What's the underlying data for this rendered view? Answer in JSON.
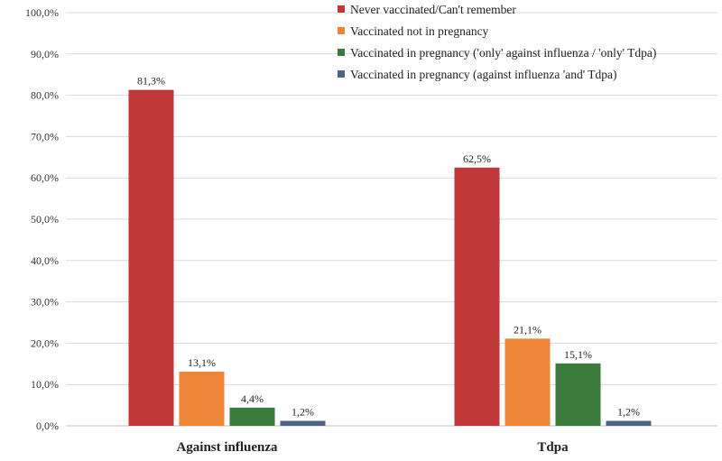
{
  "chart_data": {
    "type": "bar",
    "title": "",
    "xlabel": "",
    "ylabel": "",
    "categories": [
      "Against influenza",
      "Tdpa"
    ],
    "series": [
      {
        "name": "Never vaccinated/Can't remember",
        "color": "#c0373a",
        "values": [
          81.3,
          62.5
        ],
        "labels": [
          "81,3%",
          "62,5%"
        ]
      },
      {
        "name": "Vaccinated not in pregnancy",
        "color": "#ec8538",
        "values": [
          13.1,
          21.1
        ],
        "labels": [
          "13,1%",
          "21,1%"
        ]
      },
      {
        "name": "Vaccinated in pregnancy ('only' against influenza / 'only' Tdpa)",
        "color": "#3a7a3a",
        "values": [
          4.4,
          15.1
        ],
        "labels": [
          "4,4%",
          "15,1%"
        ]
      },
      {
        "name": "Vaccinated in pregnancy (against influenza 'and' Tdpa)",
        "color": "#4f6482",
        "values": [
          1.2,
          1.2
        ],
        "labels": [
          "1,2%",
          "1,2%"
        ]
      }
    ],
    "ylim": [
      0,
      100
    ],
    "yticks": [
      0,
      10,
      20,
      30,
      40,
      50,
      60,
      70,
      80,
      90,
      100
    ],
    "ytick_labels": [
      "0,0%",
      "10,0%",
      "20,0%",
      "30,0%",
      "40,0%",
      "50,0%",
      "60,0%",
      "70,0%",
      "80,0%",
      "90,0%",
      "100,0%"
    ],
    "grid": true,
    "legend_position": "top-right"
  }
}
